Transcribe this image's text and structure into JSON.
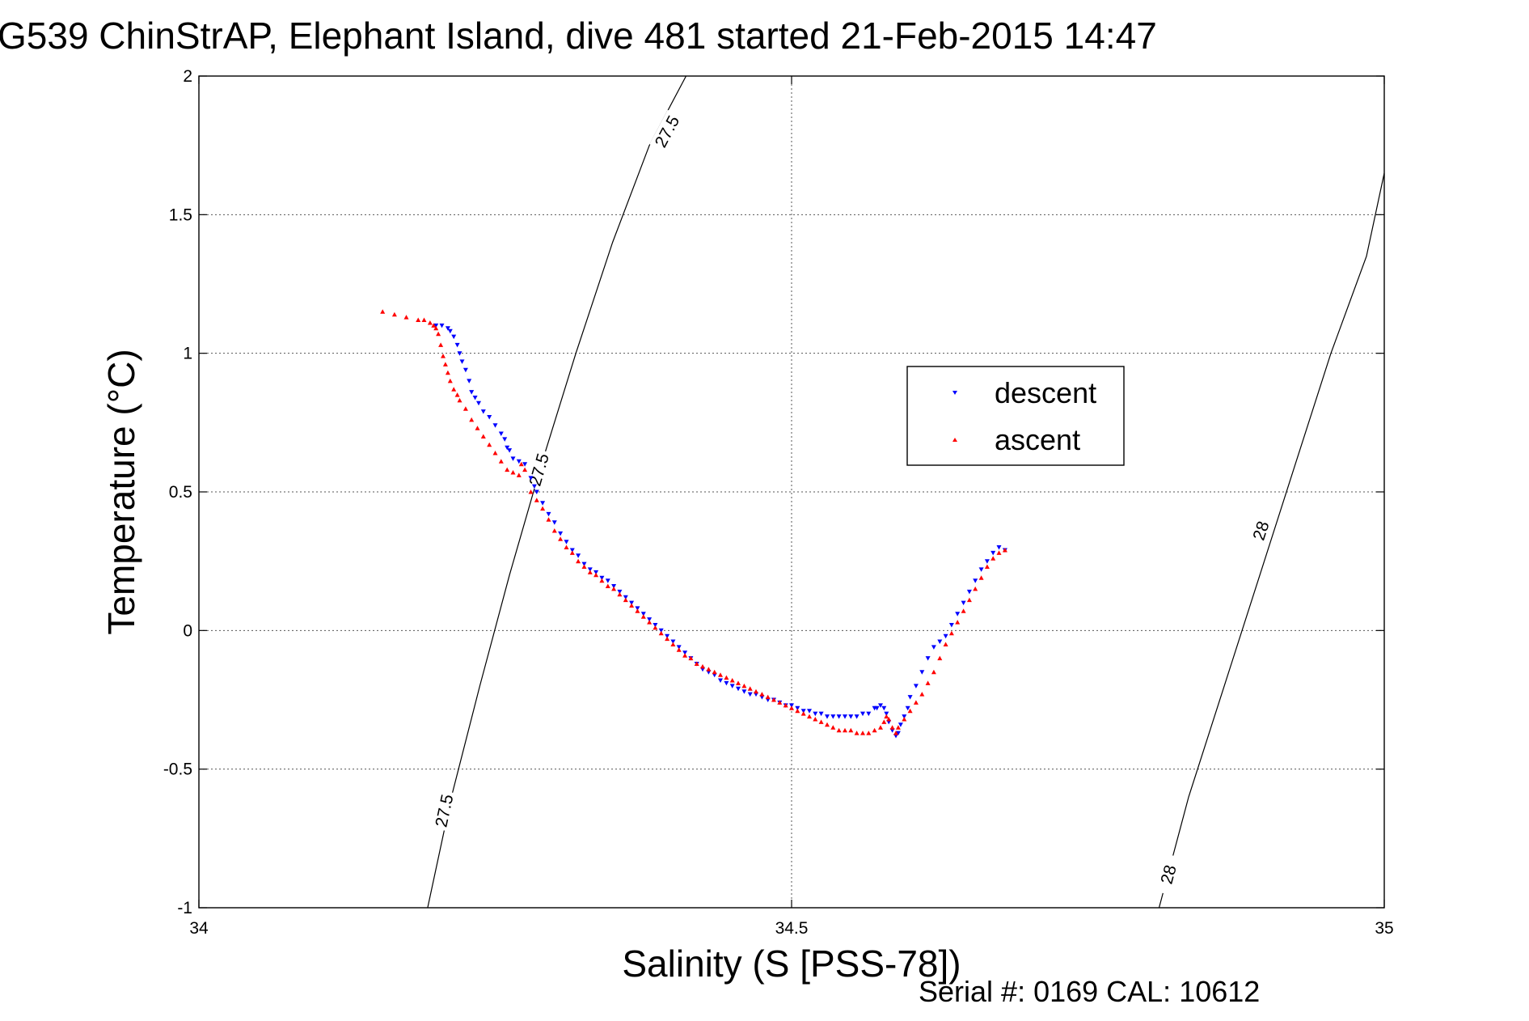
{
  "chart_data": {
    "type": "scatter",
    "title": "G539 ChinStrAP, Elephant Island, dive 481 started 21-Feb-2015 14:47",
    "xlabel": "Salinity (S [PSS-78])",
    "ylabel": "Temperature (°C)",
    "xlim": [
      34,
      35
    ],
    "ylim": [
      -1,
      2
    ],
    "xticks": [
      34,
      34.5,
      35
    ],
    "xtick_labels": [
      "34",
      "34.5",
      "35"
    ],
    "yticks": [
      -1,
      -0.5,
      0,
      0.5,
      1,
      1.5,
      2
    ],
    "ytick_labels": [
      "-1",
      "-0.5",
      "0",
      "0.5",
      "1",
      "1.5",
      "2"
    ],
    "grid": true,
    "legend_position": "center-right",
    "footer_note": "Serial #: 0169 CAL: 10612",
    "colors": {
      "descent": "#0000ff",
      "ascent": "#ff0000",
      "contour": "#000000"
    },
    "contours": [
      {
        "level_label": "27.5",
        "points": [
          [
            34.193,
            -1.0
          ],
          [
            34.213,
            -0.6
          ],
          [
            34.237,
            -0.2
          ],
          [
            34.262,
            0.2
          ],
          [
            34.289,
            0.6
          ],
          [
            34.318,
            1.0
          ],
          [
            34.349,
            1.4
          ],
          [
            34.38,
            1.75
          ],
          [
            34.411,
            2.0
          ]
        ],
        "label_positions": [
          [
            34.207,
            -0.65
          ],
          [
            34.287,
            0.58
          ],
          [
            34.395,
            1.8
          ]
        ]
      },
      {
        "level_label": "28",
        "points": [
          [
            34.81,
            -1.0
          ],
          [
            34.835,
            -0.6
          ],
          [
            34.865,
            -0.2
          ],
          [
            34.895,
            0.2
          ],
          [
            34.925,
            0.6
          ],
          [
            34.955,
            1.0
          ],
          [
            34.985,
            1.35
          ],
          [
            35.0,
            1.65
          ]
        ],
        "label_positions": [
          [
            34.818,
            -0.88
          ],
          [
            34.896,
            0.36
          ]
        ]
      }
    ],
    "series": [
      {
        "name": "descent",
        "marker": "triangle-down",
        "x": [
          34.2,
          34.205,
          34.21,
          34.212,
          34.215,
          34.218,
          34.22,
          34.222,
          34.225,
          34.228,
          34.23,
          34.233,
          34.236,
          34.24,
          34.245,
          34.25,
          34.255,
          34.258,
          34.26,
          34.262,
          34.265,
          34.27,
          34.275,
          34.28,
          34.283,
          34.285,
          34.29,
          34.295,
          34.3,
          34.305,
          34.31,
          34.315,
          34.32,
          34.325,
          34.33,
          34.335,
          34.34,
          34.345,
          34.35,
          34.355,
          34.36,
          34.365,
          34.37,
          34.375,
          34.38,
          34.385,
          34.39,
          34.395,
          34.4,
          34.405,
          34.41,
          34.415,
          34.42,
          34.425,
          34.43,
          34.435,
          34.44,
          34.445,
          34.45,
          34.455,
          34.46,
          34.465,
          34.47,
          34.475,
          34.48,
          34.485,
          34.49,
          34.495,
          34.5,
          34.505,
          34.51,
          34.515,
          34.52,
          34.525,
          34.53,
          34.535,
          34.54,
          34.545,
          34.55,
          34.555,
          34.56,
          34.565,
          34.57,
          34.572,
          34.575,
          34.578,
          34.58,
          34.582,
          34.585,
          34.588,
          34.59,
          34.592,
          34.595,
          34.598,
          34.6,
          34.605,
          34.61,
          34.615,
          34.62,
          34.625,
          34.63,
          34.635,
          34.64,
          34.645,
          34.65,
          34.655,
          34.66,
          34.665,
          34.67,
          34.675,
          34.68
        ],
        "y": [
          1.1,
          1.1,
          1.09,
          1.08,
          1.06,
          1.03,
          1.0,
          0.97,
          0.94,
          0.9,
          0.86,
          0.84,
          0.82,
          0.79,
          0.77,
          0.74,
          0.71,
          0.69,
          0.66,
          0.65,
          0.62,
          0.61,
          0.6,
          0.55,
          0.52,
          0.5,
          0.46,
          0.42,
          0.39,
          0.35,
          0.32,
          0.29,
          0.27,
          0.24,
          0.22,
          0.21,
          0.19,
          0.18,
          0.16,
          0.14,
          0.12,
          0.1,
          0.08,
          0.06,
          0.04,
          0.02,
          0.0,
          -0.02,
          -0.04,
          -0.06,
          -0.08,
          -0.1,
          -0.12,
          -0.14,
          -0.15,
          -0.16,
          -0.18,
          -0.19,
          -0.2,
          -0.21,
          -0.22,
          -0.23,
          -0.23,
          -0.24,
          -0.25,
          -0.25,
          -0.26,
          -0.27,
          -0.27,
          -0.28,
          -0.29,
          -0.29,
          -0.3,
          -0.3,
          -0.31,
          -0.31,
          -0.31,
          -0.31,
          -0.31,
          -0.31,
          -0.3,
          -0.3,
          -0.28,
          -0.28,
          -0.27,
          -0.28,
          -0.3,
          -0.33,
          -0.36,
          -0.38,
          -0.37,
          -0.34,
          -0.31,
          -0.28,
          -0.24,
          -0.2,
          -0.15,
          -0.1,
          -0.06,
          -0.04,
          -0.02,
          0.02,
          0.06,
          0.1,
          0.14,
          0.18,
          0.22,
          0.25,
          0.28,
          0.3,
          0.29
        ]
      },
      {
        "name": "ascent",
        "marker": "triangle-up",
        "x": [
          34.155,
          34.165,
          34.175,
          34.185,
          34.19,
          34.195,
          34.198,
          34.2,
          34.202,
          34.204,
          34.206,
          34.208,
          34.21,
          34.212,
          34.215,
          34.218,
          34.22,
          34.225,
          34.23,
          34.235,
          34.24,
          34.245,
          34.25,
          34.255,
          34.26,
          34.265,
          34.27,
          34.272,
          34.275,
          34.28,
          34.285,
          34.29,
          34.295,
          34.3,
          34.305,
          34.31,
          34.315,
          34.32,
          34.325,
          34.33,
          34.335,
          34.34,
          34.345,
          34.35,
          34.355,
          34.36,
          34.365,
          34.37,
          34.375,
          34.38,
          34.385,
          34.39,
          34.395,
          34.4,
          34.405,
          34.41,
          34.415,
          34.42,
          34.425,
          34.43,
          34.435,
          34.44,
          34.445,
          34.45,
          34.455,
          34.46,
          34.465,
          34.47,
          34.475,
          34.48,
          34.485,
          34.49,
          34.495,
          34.5,
          34.505,
          34.51,
          34.515,
          34.52,
          34.525,
          34.53,
          34.535,
          34.54,
          34.545,
          34.55,
          34.555,
          34.56,
          34.565,
          34.57,
          34.575,
          34.578,
          34.58,
          34.582,
          34.585,
          34.588,
          34.59,
          34.595,
          34.6,
          34.605,
          34.61,
          34.615,
          34.62,
          34.625,
          34.63,
          34.635,
          34.64,
          34.645,
          34.65,
          34.655,
          34.66,
          34.665,
          34.67,
          34.675,
          34.68
        ],
        "y": [
          1.15,
          1.14,
          1.13,
          1.12,
          1.12,
          1.11,
          1.1,
          1.09,
          1.07,
          1.03,
          0.99,
          0.96,
          0.93,
          0.9,
          0.87,
          0.85,
          0.83,
          0.8,
          0.76,
          0.73,
          0.7,
          0.67,
          0.64,
          0.61,
          0.58,
          0.57,
          0.56,
          0.6,
          0.58,
          0.5,
          0.47,
          0.44,
          0.4,
          0.36,
          0.33,
          0.3,
          0.28,
          0.25,
          0.23,
          0.21,
          0.2,
          0.18,
          0.16,
          0.15,
          0.13,
          0.11,
          0.09,
          0.07,
          0.05,
          0.03,
          0.01,
          -0.01,
          -0.03,
          -0.05,
          -0.07,
          -0.09,
          -0.1,
          -0.12,
          -0.13,
          -0.14,
          -0.15,
          -0.16,
          -0.17,
          -0.18,
          -0.19,
          -0.2,
          -0.21,
          -0.22,
          -0.23,
          -0.24,
          -0.25,
          -0.26,
          -0.27,
          -0.28,
          -0.29,
          -0.3,
          -0.31,
          -0.32,
          -0.33,
          -0.34,
          -0.35,
          -0.36,
          -0.36,
          -0.36,
          -0.37,
          -0.37,
          -0.37,
          -0.36,
          -0.35,
          -0.33,
          -0.31,
          -0.32,
          -0.35,
          -0.37,
          -0.35,
          -0.32,
          -0.29,
          -0.26,
          -0.23,
          -0.19,
          -0.15,
          -0.1,
          -0.05,
          -0.01,
          0.03,
          0.07,
          0.11,
          0.15,
          0.19,
          0.23,
          0.26,
          0.28,
          0.29
        ]
      }
    ]
  }
}
